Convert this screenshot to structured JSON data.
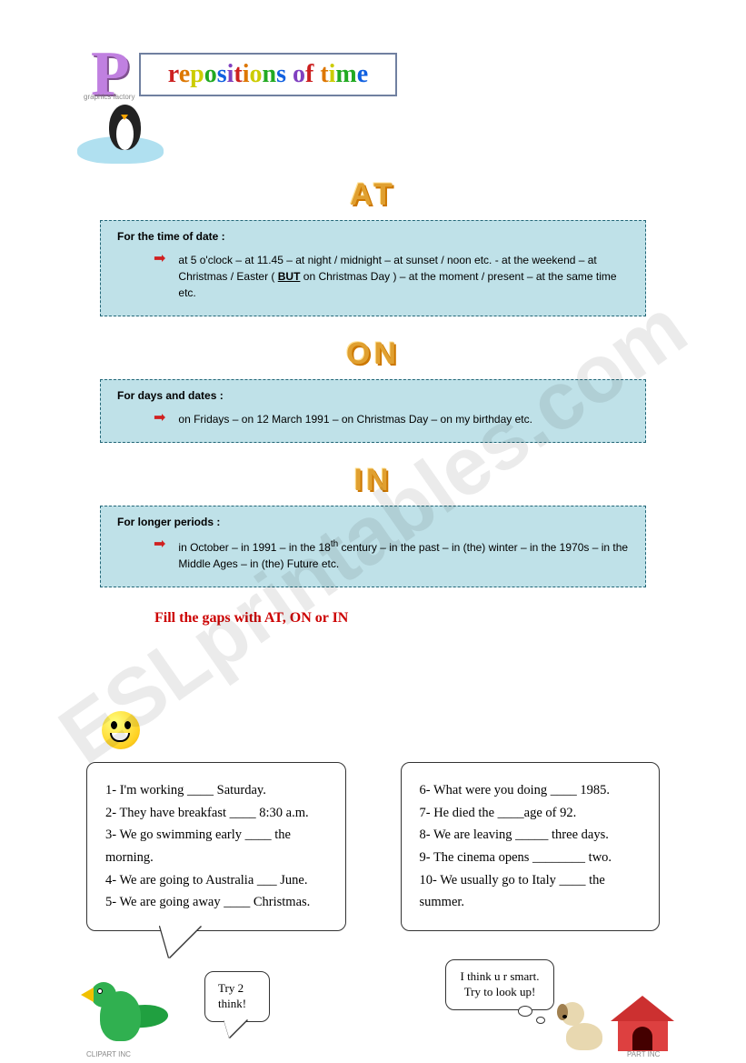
{
  "watermark": "ESLprintables.com",
  "header": {
    "big_letter": "P",
    "title_letters": [
      {
        "t": "r",
        "c": "#cc2020"
      },
      {
        "t": "e",
        "c": "#dd7700"
      },
      {
        "t": "p",
        "c": "#cccc00"
      },
      {
        "t": "o",
        "c": "#22aa22"
      },
      {
        "t": "s",
        "c": "#1060e0"
      },
      {
        "t": "i",
        "c": "#8040c0"
      },
      {
        "t": "t",
        "c": "#cc2020"
      },
      {
        "t": "i",
        "c": "#dd7700"
      },
      {
        "t": "o",
        "c": "#cccc00"
      },
      {
        "t": "n",
        "c": "#22aa22"
      },
      {
        "t": "s",
        "c": "#1060e0"
      },
      {
        "t": " ",
        "c": "#000"
      },
      {
        "t": "o",
        "c": "#8040c0"
      },
      {
        "t": "f",
        "c": "#cc2020"
      },
      {
        "t": " ",
        "c": "#000"
      },
      {
        "t": "t",
        "c": "#dd7700"
      },
      {
        "t": "i",
        "c": "#cccc00"
      },
      {
        "t": "m",
        "c": "#22aa22"
      },
      {
        "t": "e",
        "c": "#1060e0"
      }
    ]
  },
  "sections": {
    "at": {
      "title": "AT",
      "label": "For the time of date :",
      "text_pre": "at 5 o'clock – at 11.45 – at night / midnight – at sunset / noon etc. - at the weekend – at Christmas / Easter ( ",
      "text_bold": "BUT",
      "text_post": " on Christmas Day ) – at the moment / present – at the same time  etc."
    },
    "on": {
      "title": "ON",
      "label": "For days and dates :",
      "text": "on Fridays – on 12 March 1991 – on Christmas Day – on my birthday  etc."
    },
    "in": {
      "title": "IN",
      "label": "For longer periods :",
      "text_pre": "in October – in 1991 – in the 18",
      "text_sup": "th",
      "text_post": " century – in the past – in (the) winter – in the 1970s – in the Middle Ages – in (the) Future  etc."
    }
  },
  "exercise": {
    "title": "Fill the gaps with AT, ON or IN",
    "left": [
      "1-  I'm working ____ Saturday.",
      "2-  They have breakfast ____ 8:30 a.m.",
      "3-  We go swimming early ____ the morning.",
      "4-  We are going to Australia ___ June.",
      "5-  We are going away ____ Christmas."
    ],
    "right": [
      "6-   What were you doing ____ 1985.",
      "7-   He died the ____age of 92.",
      "8-   We are leaving _____ three days.",
      "9-   The cinema opens ________ two.",
      "10-  We usually go to Italy ____ the summer."
    ]
  },
  "speech": {
    "try": "Try 2 think!",
    "smart": "I think u r smart. Try to look up!"
  },
  "clipart_labels": {
    "a": "graphics factory",
    "b": "CLIPART INC",
    "c": "PART INC"
  },
  "colors": {
    "rule_bg": "#bfe1e8",
    "rule_border": "#226677",
    "title_3d": "#e0a030",
    "arrow": "#d02020",
    "ex_title": "#cc0000"
  }
}
